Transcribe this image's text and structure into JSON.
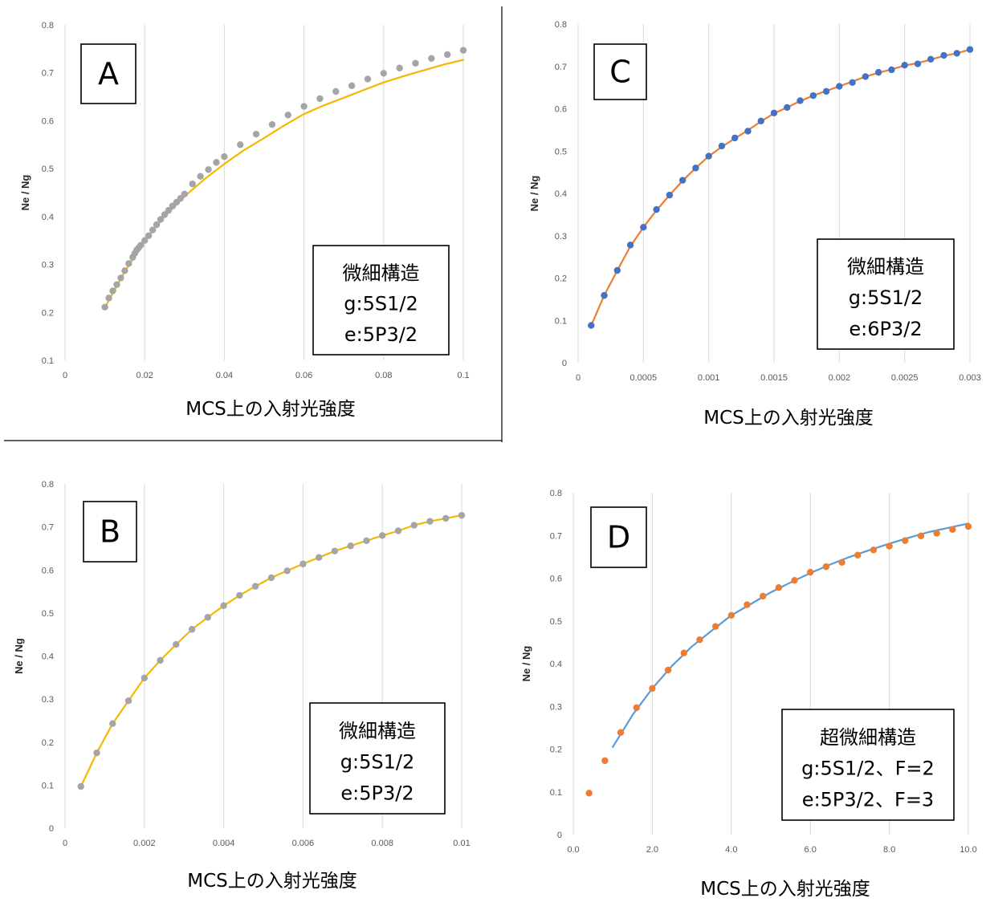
{
  "chart_data": [
    {
      "id": "A",
      "type": "scatter",
      "panel_label": "A",
      "xlabel": "MCS上の入射光強度",
      "ylabel": "Ne / Ng",
      "xlim": [
        0,
        0.1
      ],
      "ylim": [
        0.1,
        0.8
      ],
      "xticks": [
        "0",
        "0.02",
        "0.04",
        "0.06",
        "0.08",
        "0.1"
      ],
      "yticks": [
        "0.1",
        "0.2",
        "0.3",
        "0.4",
        "0.5",
        "0.6",
        "0.7",
        "0.8"
      ],
      "grid": "vertical",
      "info_box": [
        "微細構造",
        "g:5S1/2",
        "e:5P3/2"
      ],
      "series": [
        {
          "marker": "dot",
          "color": "#a5a5a5",
          "x": [
            0.01,
            0.011,
            0.012,
            0.013,
            0.014,
            0.015,
            0.016,
            0.017,
            0.0175,
            0.018,
            0.0185,
            0.019,
            0.02,
            0.021,
            0.022,
            0.023,
            0.024,
            0.025,
            0.026,
            0.027,
            0.028,
            0.029,
            0.03,
            0.032,
            0.034,
            0.036,
            0.038,
            0.04,
            0.044,
            0.048,
            0.052,
            0.056,
            0.06,
            0.064,
            0.068,
            0.072,
            0.076,
            0.08,
            0.084,
            0.088,
            0.092,
            0.096,
            0.1
          ],
          "y": [
            0.211,
            0.23,
            0.245,
            0.258,
            0.272,
            0.287,
            0.302,
            0.315,
            0.323,
            0.33,
            0.335,
            0.34,
            0.35,
            0.36,
            0.372,
            0.383,
            0.394,
            0.404,
            0.413,
            0.422,
            0.43,
            0.438,
            0.447,
            0.468,
            0.484,
            0.498,
            0.513,
            0.525,
            0.55,
            0.572,
            0.592,
            0.612,
            0.63,
            0.646,
            0.661,
            0.673,
            0.687,
            0.699,
            0.71,
            0.72,
            0.73,
            0.738,
            0.747
          ]
        },
        {
          "marker": "line",
          "color": "#f5b800",
          "x": [
            0.01,
            0.015,
            0.02,
            0.025,
            0.03,
            0.035,
            0.04,
            0.045,
            0.05,
            0.055,
            0.06,
            0.065,
            0.07,
            0.075,
            0.08,
            0.085,
            0.09,
            0.095,
            0.1
          ],
          "y": [
            0.21,
            0.285,
            0.35,
            0.4,
            0.442,
            0.478,
            0.51,
            0.539,
            0.564,
            0.59,
            0.614,
            0.632,
            0.648,
            0.664,
            0.68,
            0.693,
            0.705,
            0.717,
            0.727
          ]
        }
      ]
    },
    {
      "id": "B",
      "type": "scatter",
      "panel_label": "B",
      "xlabel": "MCS上の入射光強度",
      "ylabel": "Ne / Ng",
      "xlim": [
        0,
        0.01
      ],
      "ylim": [
        0,
        0.8
      ],
      "xticks": [
        "0",
        "0.002",
        "0.004",
        "0.006",
        "0.008",
        "0.01"
      ],
      "yticks": [
        "0",
        "0.1",
        "0.2",
        "0.3",
        "0.4",
        "0.5",
        "0.6",
        "0.7",
        "0.8"
      ],
      "grid": "vertical",
      "info_box": [
        "微細構造",
        "g:5S1/2",
        "e:5P3/2"
      ],
      "series": [
        {
          "marker": "dot",
          "color": "#a5a5a5",
          "x": [
            0.0004,
            0.0008,
            0.0012,
            0.0016,
            0.002,
            0.0024,
            0.0028,
            0.0032,
            0.0036,
            0.004,
            0.0044,
            0.0048,
            0.0052,
            0.0056,
            0.006,
            0.0064,
            0.0068,
            0.0072,
            0.0076,
            0.008,
            0.0084,
            0.0088,
            0.0092,
            0.0096,
            0.01
          ],
          "y": [
            0.097,
            0.175,
            0.243,
            0.296,
            0.349,
            0.39,
            0.427,
            0.462,
            0.49,
            0.517,
            0.541,
            0.562,
            0.582,
            0.598,
            0.614,
            0.629,
            0.644,
            0.656,
            0.668,
            0.68,
            0.691,
            0.704,
            0.713,
            0.72,
            0.727
          ]
        },
        {
          "marker": "line",
          "color": "#f5b800",
          "x": [
            0.0004,
            0.0008,
            0.0012,
            0.0016,
            0.002,
            0.0024,
            0.0028,
            0.0032,
            0.0036,
            0.004,
            0.0044,
            0.0048,
            0.0052,
            0.0056,
            0.006,
            0.0064,
            0.0068,
            0.0072,
            0.0076,
            0.008,
            0.0084,
            0.0088,
            0.0092,
            0.0096,
            0.01
          ],
          "y": [
            0.097,
            0.175,
            0.243,
            0.296,
            0.349,
            0.39,
            0.427,
            0.462,
            0.49,
            0.517,
            0.541,
            0.562,
            0.582,
            0.598,
            0.614,
            0.629,
            0.644,
            0.656,
            0.668,
            0.68,
            0.691,
            0.704,
            0.713,
            0.72,
            0.727
          ]
        }
      ]
    },
    {
      "id": "C",
      "type": "scatter",
      "panel_label": "C",
      "xlabel": "MCS上の入射光強度",
      "ylabel": "Ne / Ng",
      "xlim": [
        0,
        0.003
      ],
      "ylim": [
        0,
        0.8
      ],
      "xticks": [
        "0",
        "0.0005",
        "0.001",
        "0.0015",
        "0.002",
        "0.0025",
        "0.003"
      ],
      "yticks": [
        "0",
        "0.1",
        "0.2",
        "0.3",
        "0.4",
        "0.5",
        "0.6",
        "0.7",
        "0.8"
      ],
      "grid": "vertical",
      "info_box": [
        "微細構造",
        "g:5S1/2",
        "e:6P3/2"
      ],
      "series": [
        {
          "marker": "dot",
          "color": "#4472c4",
          "x": [
            0.0001,
            0.0002,
            0.0003,
            0.0004,
            0.0005,
            0.0006,
            0.0007,
            0.0008,
            0.0009,
            0.001,
            0.0011,
            0.0012,
            0.0013,
            0.0014,
            0.0015,
            0.0016,
            0.0017,
            0.0018,
            0.0019,
            0.002,
            0.0021,
            0.0022,
            0.0023,
            0.0024,
            0.0025,
            0.0026,
            0.0027,
            0.0028,
            0.0029,
            0.003
          ],
          "y": [
            0.088,
            0.159,
            0.218,
            0.278,
            0.32,
            0.362,
            0.396,
            0.431,
            0.46,
            0.488,
            0.512,
            0.531,
            0.547,
            0.571,
            0.59,
            0.603,
            0.619,
            0.631,
            0.641,
            0.653,
            0.662,
            0.676,
            0.686,
            0.692,
            0.703,
            0.706,
            0.717,
            0.726,
            0.731,
            0.74
          ]
        },
        {
          "marker": "line",
          "color": "#ed7d31",
          "x": [
            0.0001,
            0.0002,
            0.0003,
            0.0004,
            0.0005,
            0.0006,
            0.0007,
            0.0008,
            0.0009,
            0.001,
            0.0011,
            0.0012,
            0.0013,
            0.0014,
            0.0015,
            0.0016,
            0.0017,
            0.0018,
            0.0019,
            0.002,
            0.0021,
            0.0022,
            0.0023,
            0.0024,
            0.0025,
            0.0026,
            0.0027,
            0.0028,
            0.0029,
            0.003
          ],
          "y": [
            0.088,
            0.159,
            0.218,
            0.275,
            0.32,
            0.36,
            0.396,
            0.43,
            0.46,
            0.488,
            0.51,
            0.53,
            0.549,
            0.57,
            0.589,
            0.603,
            0.618,
            0.631,
            0.642,
            0.653,
            0.664,
            0.676,
            0.685,
            0.693,
            0.702,
            0.708,
            0.716,
            0.725,
            0.731,
            0.74
          ]
        }
      ]
    },
    {
      "id": "D",
      "type": "scatter",
      "panel_label": "D",
      "xlabel": "MCS上の入射光強度",
      "ylabel": "Ne / Ng",
      "xlim": [
        0,
        10
      ],
      "ylim": [
        0,
        0.8
      ],
      "xticks": [
        "0.0",
        "2.0",
        "4.0",
        "6.0",
        "8.0",
        "10.0"
      ],
      "yticks": [
        "0",
        "0.1",
        "0.2",
        "0.3",
        "0.4",
        "0.5",
        "0.6",
        "0.7",
        "0.8"
      ],
      "grid": "vertical",
      "info_box": [
        "超微細構造",
        "g:5S1/2、F=2",
        "e:5P3/2、F=3"
      ],
      "series": [
        {
          "marker": "dot",
          "color": "#ed7d31",
          "x": [
            0.4,
            0.8,
            1.2,
            1.6,
            2.0,
            2.4,
            2.8,
            3.2,
            3.6,
            4.0,
            4.4,
            4.8,
            5.2,
            5.6,
            6.0,
            6.4,
            6.8,
            7.2,
            7.6,
            8.0,
            8.4,
            8.8,
            9.2,
            9.6,
            10.0
          ],
          "y": [
            0.097,
            0.173,
            0.239,
            0.297,
            0.342,
            0.385,
            0.425,
            0.456,
            0.487,
            0.513,
            0.538,
            0.558,
            0.578,
            0.595,
            0.614,
            0.627,
            0.637,
            0.654,
            0.666,
            0.675,
            0.688,
            0.699,
            0.705,
            0.714,
            0.721
          ]
        },
        {
          "marker": "line",
          "color": "#5b9bd5",
          "x": [
            1.0,
            1.5,
            2.0,
            2.5,
            3.0,
            3.5,
            4.0,
            4.5,
            5.0,
            5.5,
            6.0,
            6.5,
            7.0,
            7.5,
            8.0,
            8.5,
            9.0,
            9.5,
            10.0
          ],
          "y": [
            0.205,
            0.28,
            0.342,
            0.395,
            0.44,
            0.477,
            0.513,
            0.54,
            0.567,
            0.59,
            0.612,
            0.632,
            0.65,
            0.666,
            0.681,
            0.695,
            0.708,
            0.718,
            0.728
          ]
        }
      ]
    }
  ]
}
